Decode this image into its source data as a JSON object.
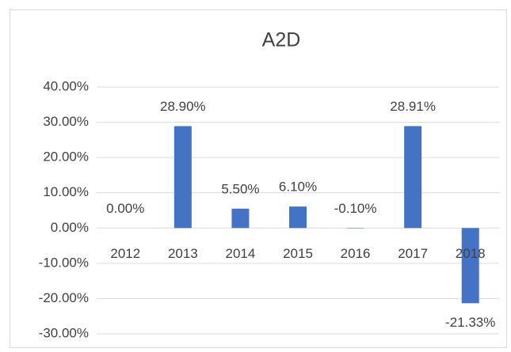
{
  "chart_data": {
    "type": "bar",
    "title": "A2D",
    "categories": [
      "2012",
      "2013",
      "2014",
      "2015",
      "2016",
      "2017",
      "2018"
    ],
    "values": [
      0,
      28.9,
      5.5,
      6.1,
      -0.1,
      28.91,
      -21.33
    ],
    "value_labels": [
      "0.00%",
      "28.90%",
      "5.50%",
      "6.10%",
      "-0.10%",
      "28.91%",
      "-21.33%"
    ],
    "color": "#4472c4",
    "ylim": [
      -30,
      40
    ],
    "yticks": [
      {
        "value": -30,
        "label": "-30.00%"
      },
      {
        "value": -20,
        "label": "-20.00%"
      },
      {
        "value": -10,
        "label": "-10.00%"
      },
      {
        "value": 0,
        "label": "0.00%"
      },
      {
        "value": 10,
        "label": "10.00%"
      },
      {
        "value": 20,
        "label": "20.00%"
      },
      {
        "value": 30,
        "label": "30.00%"
      },
      {
        "value": 40,
        "label": "40.00%"
      }
    ],
    "grid": true
  }
}
